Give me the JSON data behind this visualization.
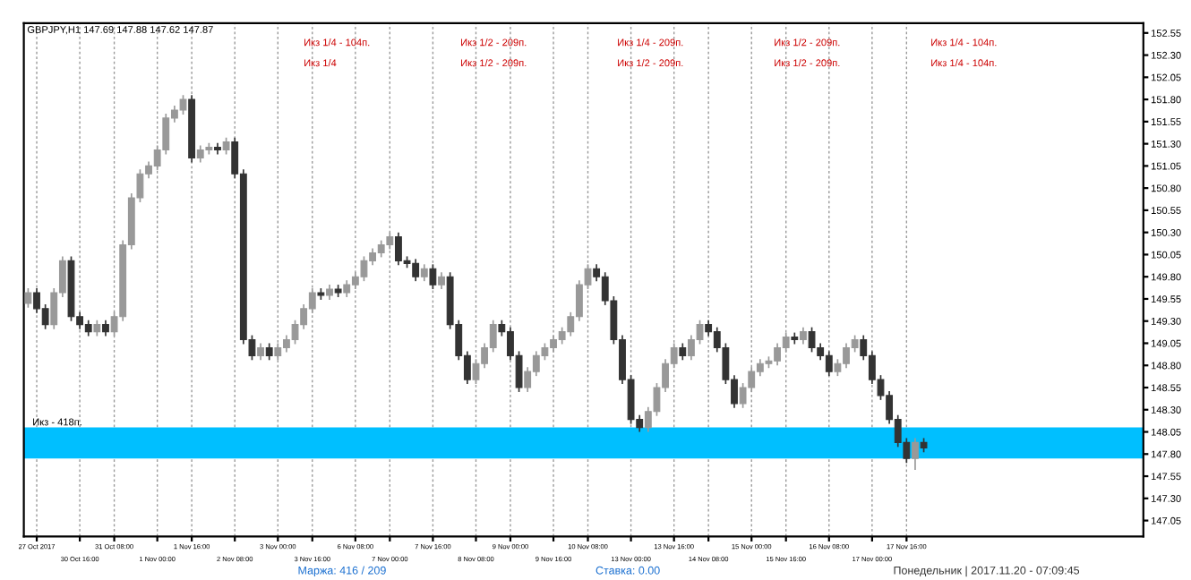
{
  "chart_data": {
    "type": "candlestick",
    "title": "GBPJPY,H1 147.69 147.88 147.62 147.87",
    "categories": [
      null,
      "27 Oct 2017",
      null,
      null,
      null,
      null,
      "30 Oct 16:00",
      null,
      null,
      null,
      "31 Oct 08:00",
      null,
      null,
      null,
      null,
      "1 Nov 00:00",
      null,
      null,
      null,
      "1 Nov 16:00",
      null,
      null,
      null,
      null,
      "2 Nov 08:00",
      null,
      null,
      null,
      null,
      "3 Nov 00:00",
      null,
      null,
      null,
      "3 Nov 16:00",
      null,
      null,
      null,
      null,
      "6 Nov 08:00",
      null,
      null,
      null,
      "7 Nov 00:00",
      null,
      null,
      null,
      null,
      "7 Nov 16:00",
      null,
      null,
      null,
      null,
      "8 Nov 08:00",
      null,
      null,
      null,
      "9 Nov 00:00",
      null,
      null,
      null,
      null,
      "9 Nov 16:00",
      null,
      null,
      null,
      "10 Nov 08:00",
      null,
      null,
      null,
      null,
      "13 Nov 00:00",
      null,
      null,
      null,
      null,
      "13 Nov 16:00",
      null,
      null,
      null,
      "14 Nov 08:00",
      null,
      null,
      null,
      null,
      "15 Nov 00:00",
      null,
      null,
      null,
      "15 Nov 16:00",
      null,
      null,
      null,
      null,
      "16 Nov 08:00",
      null,
      null,
      null,
      null,
      "17 Nov 00:00",
      null,
      null,
      null,
      "17 Nov 16:00",
      null,
      null,
      null,
      null,
      null,
      null,
      null,
      null,
      null,
      null,
      null,
      null,
      null,
      null,
      null,
      null,
      null,
      null,
      null,
      null,
      null,
      null,
      null,
      null,
      null,
      null,
      null
    ],
    "ohlc": [
      [
        149.5,
        149.67,
        149.45,
        149.62
      ],
      [
        149.62,
        149.67,
        149.39,
        149.44
      ],
      [
        149.44,
        149.49,
        149.21,
        149.26
      ],
      [
        149.26,
        149.67,
        149.21,
        149.62
      ],
      [
        149.62,
        150.03,
        149.57,
        149.98
      ],
      [
        149.98,
        150.03,
        149.3,
        149.35
      ],
      [
        149.35,
        149.4,
        149.21,
        149.26
      ],
      [
        149.26,
        149.31,
        149.13,
        149.18
      ],
      [
        149.18,
        149.31,
        149.13,
        149.26
      ],
      [
        149.26,
        149.31,
        149.13,
        149.18
      ],
      [
        149.18,
        149.4,
        149.13,
        149.35
      ],
      [
        149.35,
        150.21,
        149.3,
        150.16
      ],
      [
        150.16,
        150.74,
        150.11,
        150.69
      ],
      [
        150.69,
        151.01,
        150.64,
        150.96
      ],
      [
        150.96,
        151.1,
        150.91,
        151.05
      ],
      [
        151.05,
        151.28,
        151.0,
        151.23
      ],
      [
        151.23,
        151.64,
        151.18,
        151.59
      ],
      [
        151.59,
        151.73,
        151.54,
        151.68
      ],
      [
        151.68,
        151.85,
        151.63,
        151.8
      ],
      [
        151.8,
        151.85,
        151.09,
        151.14
      ],
      [
        151.14,
        151.28,
        151.09,
        151.23
      ],
      [
        151.23,
        151.31,
        151.18,
        151.26
      ],
      [
        151.26,
        151.31,
        151.18,
        151.23
      ],
      [
        151.23,
        151.37,
        151.18,
        151.32
      ],
      [
        151.32,
        151.37,
        150.91,
        150.96
      ],
      [
        150.96,
        151.01,
        149.04,
        149.09
      ],
      [
        149.09,
        149.14,
        148.86,
        148.91
      ],
      [
        148.91,
        149.05,
        148.86,
        149.0
      ],
      [
        149.0,
        149.05,
        148.86,
        148.91
      ],
      [
        148.91,
        149.05,
        148.86,
        149.0
      ],
      [
        149.0,
        149.14,
        148.95,
        149.09
      ],
      [
        149.09,
        149.31,
        149.04,
        149.26
      ],
      [
        149.26,
        149.49,
        149.21,
        149.44
      ],
      [
        149.44,
        149.67,
        149.39,
        149.62
      ],
      [
        149.62,
        149.67,
        149.54,
        149.59
      ],
      [
        149.59,
        149.71,
        149.54,
        149.66
      ],
      [
        149.66,
        149.71,
        149.57,
        149.62
      ],
      [
        149.62,
        149.76,
        149.57,
        149.71
      ],
      [
        149.71,
        149.85,
        149.66,
        149.8
      ],
      [
        149.8,
        150.03,
        149.75,
        149.98
      ],
      [
        149.98,
        150.12,
        149.93,
        150.07
      ],
      [
        150.07,
        150.21,
        150.02,
        150.16
      ],
      [
        150.16,
        150.3,
        150.11,
        150.25
      ],
      [
        150.25,
        150.3,
        149.93,
        149.98
      ],
      [
        149.98,
        150.03,
        149.9,
        149.95
      ],
      [
        149.95,
        150.0,
        149.75,
        149.8
      ],
      [
        149.8,
        149.94,
        149.75,
        149.89
      ],
      [
        149.89,
        149.94,
        149.66,
        149.71
      ],
      [
        149.71,
        149.85,
        149.66,
        149.8
      ],
      [
        149.8,
        149.85,
        149.21,
        149.26
      ],
      [
        149.26,
        149.31,
        148.86,
        148.91
      ],
      [
        148.91,
        148.96,
        148.59,
        148.64
      ],
      [
        148.64,
        148.87,
        148.59,
        148.82
      ],
      [
        148.82,
        149.05,
        148.77,
        149.0
      ],
      [
        149.0,
        149.31,
        148.95,
        149.26
      ],
      [
        149.26,
        149.31,
        149.13,
        149.18
      ],
      [
        149.18,
        149.23,
        148.86,
        148.91
      ],
      [
        148.91,
        148.96,
        148.5,
        148.55
      ],
      [
        148.55,
        148.78,
        148.5,
        148.73
      ],
      [
        148.73,
        148.96,
        148.68,
        148.91
      ],
      [
        148.91,
        149.05,
        148.86,
        149.0
      ],
      [
        149.0,
        149.14,
        148.95,
        149.09
      ],
      [
        149.09,
        149.23,
        149.04,
        149.18
      ],
      [
        149.18,
        149.4,
        149.13,
        149.35
      ],
      [
        149.35,
        149.76,
        149.3,
        149.71
      ],
      [
        149.71,
        149.94,
        149.66,
        149.89
      ],
      [
        149.89,
        149.94,
        149.75,
        149.8
      ],
      [
        149.8,
        149.85,
        149.48,
        149.53
      ],
      [
        149.53,
        149.58,
        149.04,
        149.09
      ],
      [
        149.09,
        149.14,
        148.59,
        148.64
      ],
      [
        148.64,
        148.69,
        148.14,
        148.19
      ],
      [
        148.19,
        148.24,
        148.05,
        148.1
      ],
      [
        148.1,
        148.33,
        148.05,
        148.28
      ],
      [
        148.28,
        148.6,
        148.23,
        148.55
      ],
      [
        148.55,
        148.87,
        148.5,
        148.82
      ],
      [
        148.82,
        149.05,
        148.77,
        149.0
      ],
      [
        149.0,
        149.05,
        148.86,
        148.91
      ],
      [
        148.91,
        149.14,
        148.86,
        149.09
      ],
      [
        149.09,
        149.31,
        149.04,
        149.26
      ],
      [
        149.26,
        149.31,
        149.13,
        149.18
      ],
      [
        149.18,
        149.23,
        148.95,
        149.0
      ],
      [
        149.0,
        149.05,
        148.59,
        148.64
      ],
      [
        148.64,
        148.69,
        148.32,
        148.37
      ],
      [
        148.37,
        148.6,
        148.32,
        148.55
      ],
      [
        148.55,
        148.78,
        148.5,
        148.73
      ],
      [
        148.73,
        148.87,
        148.68,
        148.82
      ],
      [
        148.82,
        148.9,
        148.77,
        148.85
      ],
      [
        148.85,
        149.05,
        148.8,
        149.0
      ],
      [
        149.0,
        149.17,
        148.95,
        149.12
      ],
      [
        149.12,
        149.17,
        149.04,
        149.09
      ],
      [
        149.09,
        149.23,
        149.04,
        149.18
      ],
      [
        149.18,
        149.23,
        148.95,
        149.0
      ],
      [
        149.0,
        149.05,
        148.86,
        148.91
      ],
      [
        148.91,
        148.96,
        148.68,
        148.73
      ],
      [
        148.73,
        148.87,
        148.68,
        148.82
      ],
      [
        148.82,
        149.05,
        148.77,
        149.0
      ],
      [
        149.0,
        149.14,
        148.95,
        149.09
      ],
      [
        149.09,
        149.14,
        148.86,
        148.91
      ],
      [
        148.91,
        148.96,
        148.59,
        148.64
      ],
      [
        148.64,
        148.69,
        148.41,
        148.46
      ],
      [
        148.46,
        148.51,
        148.14,
        148.19
      ],
      [
        148.19,
        148.24,
        147.88,
        147.93
      ],
      [
        147.93,
        147.98,
        147.7,
        147.75
      ],
      [
        147.75,
        147.98,
        147.62,
        147.93
      ],
      [
        147.93,
        147.98,
        147.82,
        147.87
      ],
      null,
      null,
      null,
      null,
      null,
      null,
      null,
      null,
      null,
      null,
      null,
      null,
      null,
      null,
      null,
      null,
      null,
      null,
      null,
      null,
      null,
      null,
      null,
      null,
      null
    ],
    "ylim": [
      146.87,
      152.66
    ],
    "yticks": [
      147.05,
      {
        "value": 147.3,
        "label": "147.30"
      },
      147.55,
      {
        "value": 147.8,
        "label": "147.80"
      },
      148.05,
      {
        "value": 148.3,
        "label": "148.30"
      },
      148.55,
      {
        "value": 148.8,
        "label": "148.80"
      },
      149.05,
      {
        "value": 149.3,
        "label": "149.30"
      },
      149.55,
      {
        "value": 149.8,
        "label": "149.80"
      },
      150.05,
      {
        "value": 150.3,
        "label": "150.30"
      },
      150.55,
      {
        "value": 150.8,
        "label": "150.80"
      },
      151.05,
      {
        "value": 151.3,
        "label": "151.30"
      },
      151.55,
      {
        "value": 151.8,
        "label": "151.80"
      },
      152.05,
      {
        "value": 152.3,
        "label": "152.30"
      },
      152.55
    ],
    "grid": "x",
    "line_style": "dashed",
    "bands": [
      {
        "axis": "y",
        "from": 147.75,
        "to": 148.1,
        "label": "Икз - 418п.",
        "color": "#00bfff"
      }
    ],
    "annotations": [
      "Икз 1/4 - 104п.",
      "Икз 1/2 - 209п.",
      "Икз 1/4 - 209п.",
      "Икз 1/2 - 209п.",
      "Икз 1/4 - 104п.",
      "Икз 1/4",
      "Икз 1/2 - 209п.",
      "Икз 1/2 - 209п.",
      "Икз 1/2 - 209п.",
      "Икз 1/4 - 104п.",
      "Маржа: 416 / 209",
      "Ставка: 0.00",
      "Понедельник | 2017.11.20 - 07:09:45"
    ]
  }
}
